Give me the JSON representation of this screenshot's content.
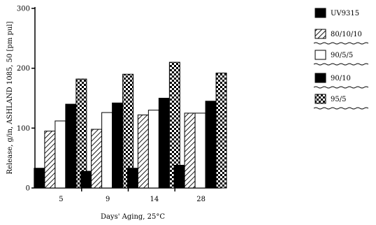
{
  "chart_data": {
    "type": "bar",
    "xlabel": "Days' Aging, 25°C",
    "ylabel": "Release, g/in, ASHLAND 1085, 50 [pm pul]",
    "ylim": [
      0,
      300
    ],
    "yticks": [
      0,
      100,
      200,
      300
    ],
    "grid": false,
    "legend_position": "right",
    "categories": [
      "5",
      "9",
      "14",
      "28"
    ],
    "series": [
      {
        "name": "UV9315",
        "pattern": "solid",
        "values": [
          33,
          28,
          33,
          38
        ]
      },
      {
        "name": "80/10/10",
        "pattern": "diagonal",
        "values": [
          95,
          98,
          122,
          125
        ]
      },
      {
        "name": "90/5/5",
        "pattern": "outline",
        "values": [
          112,
          126,
          130,
          125
        ]
      },
      {
        "name": "90/10",
        "pattern": "solid",
        "values": [
          140,
          142,
          150,
          145
        ]
      },
      {
        "name": "95/5",
        "pattern": "checker",
        "values": [
          182,
          190,
          210,
          192
        ]
      }
    ]
  }
}
